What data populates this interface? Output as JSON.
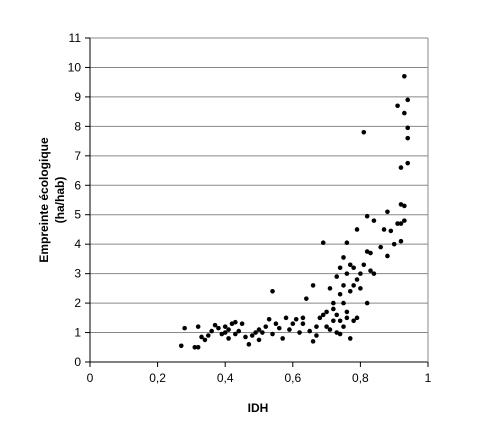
{
  "chart_data": {
    "type": "scatter",
    "x_label": "IDH",
    "y_label": [
      "Empreinte écologique",
      "(ha/hab)"
    ],
    "color": "#000000",
    "grid": true,
    "xlim": [
      0,
      1
    ],
    "ylim": [
      0,
      11
    ],
    "xticks": [
      0,
      {
        "value": 0.2,
        "label": "0,2"
      },
      {
        "value": 0.4,
        "label": "0,4"
      },
      {
        "value": 0.6,
        "label": "0,6"
      },
      {
        "value": 0.8,
        "label": "0,8"
      },
      1
    ],
    "yticks": [
      0,
      1,
      2,
      3,
      4,
      5,
      6,
      7,
      8,
      9,
      10,
      11
    ],
    "x": [
      0.27,
      0.28,
      0.31,
      0.32,
      0.32,
      0.33,
      0.34,
      0.35,
      0.36,
      0.37,
      0.38,
      0.39,
      0.4,
      0.4,
      0.41,
      0.41,
      0.42,
      0.43,
      0.43,
      0.44,
      0.45,
      0.46,
      0.47,
      0.48,
      0.49,
      0.5,
      0.5,
      0.51,
      0.52,
      0.53,
      0.54,
      0.54,
      0.55,
      0.56,
      0.57,
      0.58,
      0.59,
      0.6,
      0.61,
      0.62,
      0.63,
      0.63,
      0.64,
      0.65,
      0.66,
      0.66,
      0.67,
      0.67,
      0.68,
      0.69,
      0.69,
      0.7,
      0.7,
      0.71,
      0.71,
      0.72,
      0.72,
      0.72,
      0.73,
      0.73,
      0.73,
      0.74,
      0.74,
      0.74,
      0.74,
      0.75,
      0.75,
      0.75,
      0.75,
      0.76,
      0.76,
      0.76,
      0.76,
      0.77,
      0.77,
      0.77,
      0.78,
      0.78,
      0.78,
      0.79,
      0.79,
      0.79,
      0.8,
      0.8,
      0.81,
      0.81,
      0.82,
      0.82,
      0.82,
      0.83,
      0.83,
      0.84,
      0.84,
      0.86,
      0.87,
      0.88,
      0.88,
      0.89,
      0.9,
      0.91,
      0.91,
      0.92,
      0.92,
      0.92,
      0.93,
      0.93,
      0.93,
      0.93,
      0.94,
      0.94,
      0.94,
      0.94,
      0.92
    ],
    "values": [
      0.55,
      1.15,
      0.5,
      0.5,
      1.2,
      0.85,
      0.75,
      0.9,
      1.05,
      1.25,
      1.15,
      0.95,
      1.0,
      1.2,
      0.8,
      1.1,
      1.3,
      1.35,
      0.95,
      1.05,
      1.3,
      0.85,
      0.6,
      0.9,
      1.0,
      0.75,
      1.1,
      1.0,
      1.2,
      1.45,
      2.4,
      0.95,
      1.3,
      1.15,
      0.8,
      1.5,
      1.1,
      1.3,
      1.45,
      1.0,
      1.5,
      1.3,
      2.15,
      1.05,
      2.6,
      0.7,
      1.2,
      0.9,
      1.5,
      1.6,
      4.05,
      1.2,
      1.7,
      1.1,
      2.5,
      1.4,
      2.0,
      1.8,
      2.9,
      1.6,
      1.0,
      3.2,
      2.3,
      1.4,
      0.95,
      3.55,
      2.0,
      1.2,
      2.6,
      4.05,
      1.7,
      3.0,
      1.5,
      3.3,
      2.4,
      0.8,
      3.2,
      1.4,
      2.6,
      4.5,
      2.8,
      1.5,
      3.0,
      2.5,
      7.8,
      3.3,
      4.95,
      3.75,
      2.0,
      3.1,
      3.7,
      4.8,
      3.0,
      3.9,
      4.5,
      5.1,
      3.6,
      4.45,
      4.0,
      8.7,
      4.7,
      5.35,
      6.6,
      4.1,
      8.45,
      5.3,
      4.8,
      9.7,
      8.9,
      7.6,
      7.95,
      6.75,
      4.7
    ]
  }
}
